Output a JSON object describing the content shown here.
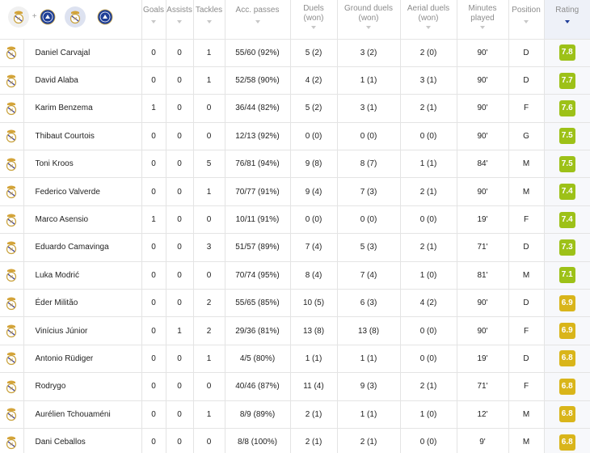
{
  "header": {
    "columns": [
      {
        "key": "goals",
        "label": "Goals"
      },
      {
        "key": "assists",
        "label": "Assists"
      },
      {
        "key": "tackles",
        "label": "Tackles"
      },
      {
        "key": "acc_passes",
        "label": "Acc. passes"
      },
      {
        "key": "duels",
        "label": "Duels\n(won)"
      },
      {
        "key": "ground_duels",
        "label": "Ground duels\n(won)"
      },
      {
        "key": "aerial_duels",
        "label": "Aerial duels\n(won)"
      },
      {
        "key": "minutes",
        "label": "Minutes\nplayed"
      },
      {
        "key": "position",
        "label": "Position"
      },
      {
        "key": "rating",
        "label": "Rating"
      }
    ],
    "sorted_column": "rating",
    "team_filter_icons": [
      "real-madrid-crest",
      "chelsea-crest",
      "real-madrid-crest",
      "chelsea-crest"
    ]
  },
  "colors": {
    "rating_green": "#9dc118",
    "rating_yellow": "#d9b51a",
    "sort_accent": "#1f3d99"
  },
  "players": [
    {
      "name": "Daniel Carvajal",
      "goals": "0",
      "assists": "0",
      "tackles": "1",
      "acc_passes": "55/60 (92%)",
      "duels": "5 (2)",
      "ground_duels": "3 (2)",
      "aerial_duels": "2 (0)",
      "minutes": "90'",
      "position": "D",
      "rating": "7.8",
      "rating_color": "green"
    },
    {
      "name": "David Alaba",
      "goals": "0",
      "assists": "0",
      "tackles": "1",
      "acc_passes": "52/58 (90%)",
      "duels": "4 (2)",
      "ground_duels": "1 (1)",
      "aerial_duels": "3 (1)",
      "minutes": "90'",
      "position": "D",
      "rating": "7.7",
      "rating_color": "green"
    },
    {
      "name": "Karim Benzema",
      "goals": "1",
      "assists": "0",
      "tackles": "0",
      "acc_passes": "36/44 (82%)",
      "duels": "5 (2)",
      "ground_duels": "3 (1)",
      "aerial_duels": "2 (1)",
      "minutes": "90'",
      "position": "F",
      "rating": "7.6",
      "rating_color": "green"
    },
    {
      "name": "Thibaut Courtois",
      "goals": "0",
      "assists": "0",
      "tackles": "0",
      "acc_passes": "12/13 (92%)",
      "duels": "0 (0)",
      "ground_duels": "0 (0)",
      "aerial_duels": "0 (0)",
      "minutes": "90'",
      "position": "G",
      "rating": "7.5",
      "rating_color": "green"
    },
    {
      "name": "Toni Kroos",
      "goals": "0",
      "assists": "0",
      "tackles": "5",
      "acc_passes": "76/81 (94%)",
      "duels": "9 (8)",
      "ground_duels": "8 (7)",
      "aerial_duels": "1 (1)",
      "minutes": "84'",
      "position": "M",
      "rating": "7.5",
      "rating_color": "green"
    },
    {
      "name": "Federico Valverde",
      "goals": "0",
      "assists": "0",
      "tackles": "1",
      "acc_passes": "70/77 (91%)",
      "duels": "9 (4)",
      "ground_duels": "7 (3)",
      "aerial_duels": "2 (1)",
      "minutes": "90'",
      "position": "M",
      "rating": "7.4",
      "rating_color": "green"
    },
    {
      "name": "Marco Asensio",
      "goals": "1",
      "assists": "0",
      "tackles": "0",
      "acc_passes": "10/11 (91%)",
      "duels": "0 (0)",
      "ground_duels": "0 (0)",
      "aerial_duels": "0 (0)",
      "minutes": "19'",
      "position": "F",
      "rating": "7.4",
      "rating_color": "green"
    },
    {
      "name": "Eduardo Camavinga",
      "goals": "0",
      "assists": "0",
      "tackles": "3",
      "acc_passes": "51/57 (89%)",
      "duels": "7 (4)",
      "ground_duels": "5 (3)",
      "aerial_duels": "2 (1)",
      "minutes": "71'",
      "position": "D",
      "rating": "7.3",
      "rating_color": "green"
    },
    {
      "name": "Luka Modrić",
      "goals": "0",
      "assists": "0",
      "tackles": "0",
      "acc_passes": "70/74 (95%)",
      "duels": "8 (4)",
      "ground_duels": "7 (4)",
      "aerial_duels": "1 (0)",
      "minutes": "81'",
      "position": "M",
      "rating": "7.1",
      "rating_color": "green"
    },
    {
      "name": "Éder Militão",
      "goals": "0",
      "assists": "0",
      "tackles": "2",
      "acc_passes": "55/65 (85%)",
      "duels": "10 (5)",
      "ground_duels": "6 (3)",
      "aerial_duels": "4 (2)",
      "minutes": "90'",
      "position": "D",
      "rating": "6.9",
      "rating_color": "yellow"
    },
    {
      "name": "Vinícius Júnior",
      "goals": "0",
      "assists": "1",
      "tackles": "2",
      "acc_passes": "29/36 (81%)",
      "duels": "13 (8)",
      "ground_duels": "13 (8)",
      "aerial_duels": "0 (0)",
      "minutes": "90'",
      "position": "F",
      "rating": "6.9",
      "rating_color": "yellow"
    },
    {
      "name": "Antonio Rüdiger",
      "goals": "0",
      "assists": "0",
      "tackles": "1",
      "acc_passes": "4/5 (80%)",
      "duels": "1 (1)",
      "ground_duels": "1 (1)",
      "aerial_duels": "0 (0)",
      "minutes": "19'",
      "position": "D",
      "rating": "6.8",
      "rating_color": "yellow"
    },
    {
      "name": "Rodrygo",
      "goals": "0",
      "assists": "0",
      "tackles": "0",
      "acc_passes": "40/46 (87%)",
      "duels": "11 (4)",
      "ground_duels": "9 (3)",
      "aerial_duels": "2 (1)",
      "minutes": "71'",
      "position": "F",
      "rating": "6.8",
      "rating_color": "yellow"
    },
    {
      "name": "Aurélien Tchouaméni",
      "goals": "0",
      "assists": "0",
      "tackles": "1",
      "acc_passes": "8/9 (89%)",
      "duels": "2 (1)",
      "ground_duels": "1 (1)",
      "aerial_duels": "1 (0)",
      "minutes": "12'",
      "position": "M",
      "rating": "6.8",
      "rating_color": "yellow"
    },
    {
      "name": "Dani Ceballos",
      "goals": "0",
      "assists": "0",
      "tackles": "0",
      "acc_passes": "8/8 (100%)",
      "duels": "2 (1)",
      "ground_duels": "2 (1)",
      "aerial_duels": "0 (0)",
      "minutes": "9'",
      "position": "M",
      "rating": "6.8",
      "rating_color": "yellow"
    }
  ]
}
